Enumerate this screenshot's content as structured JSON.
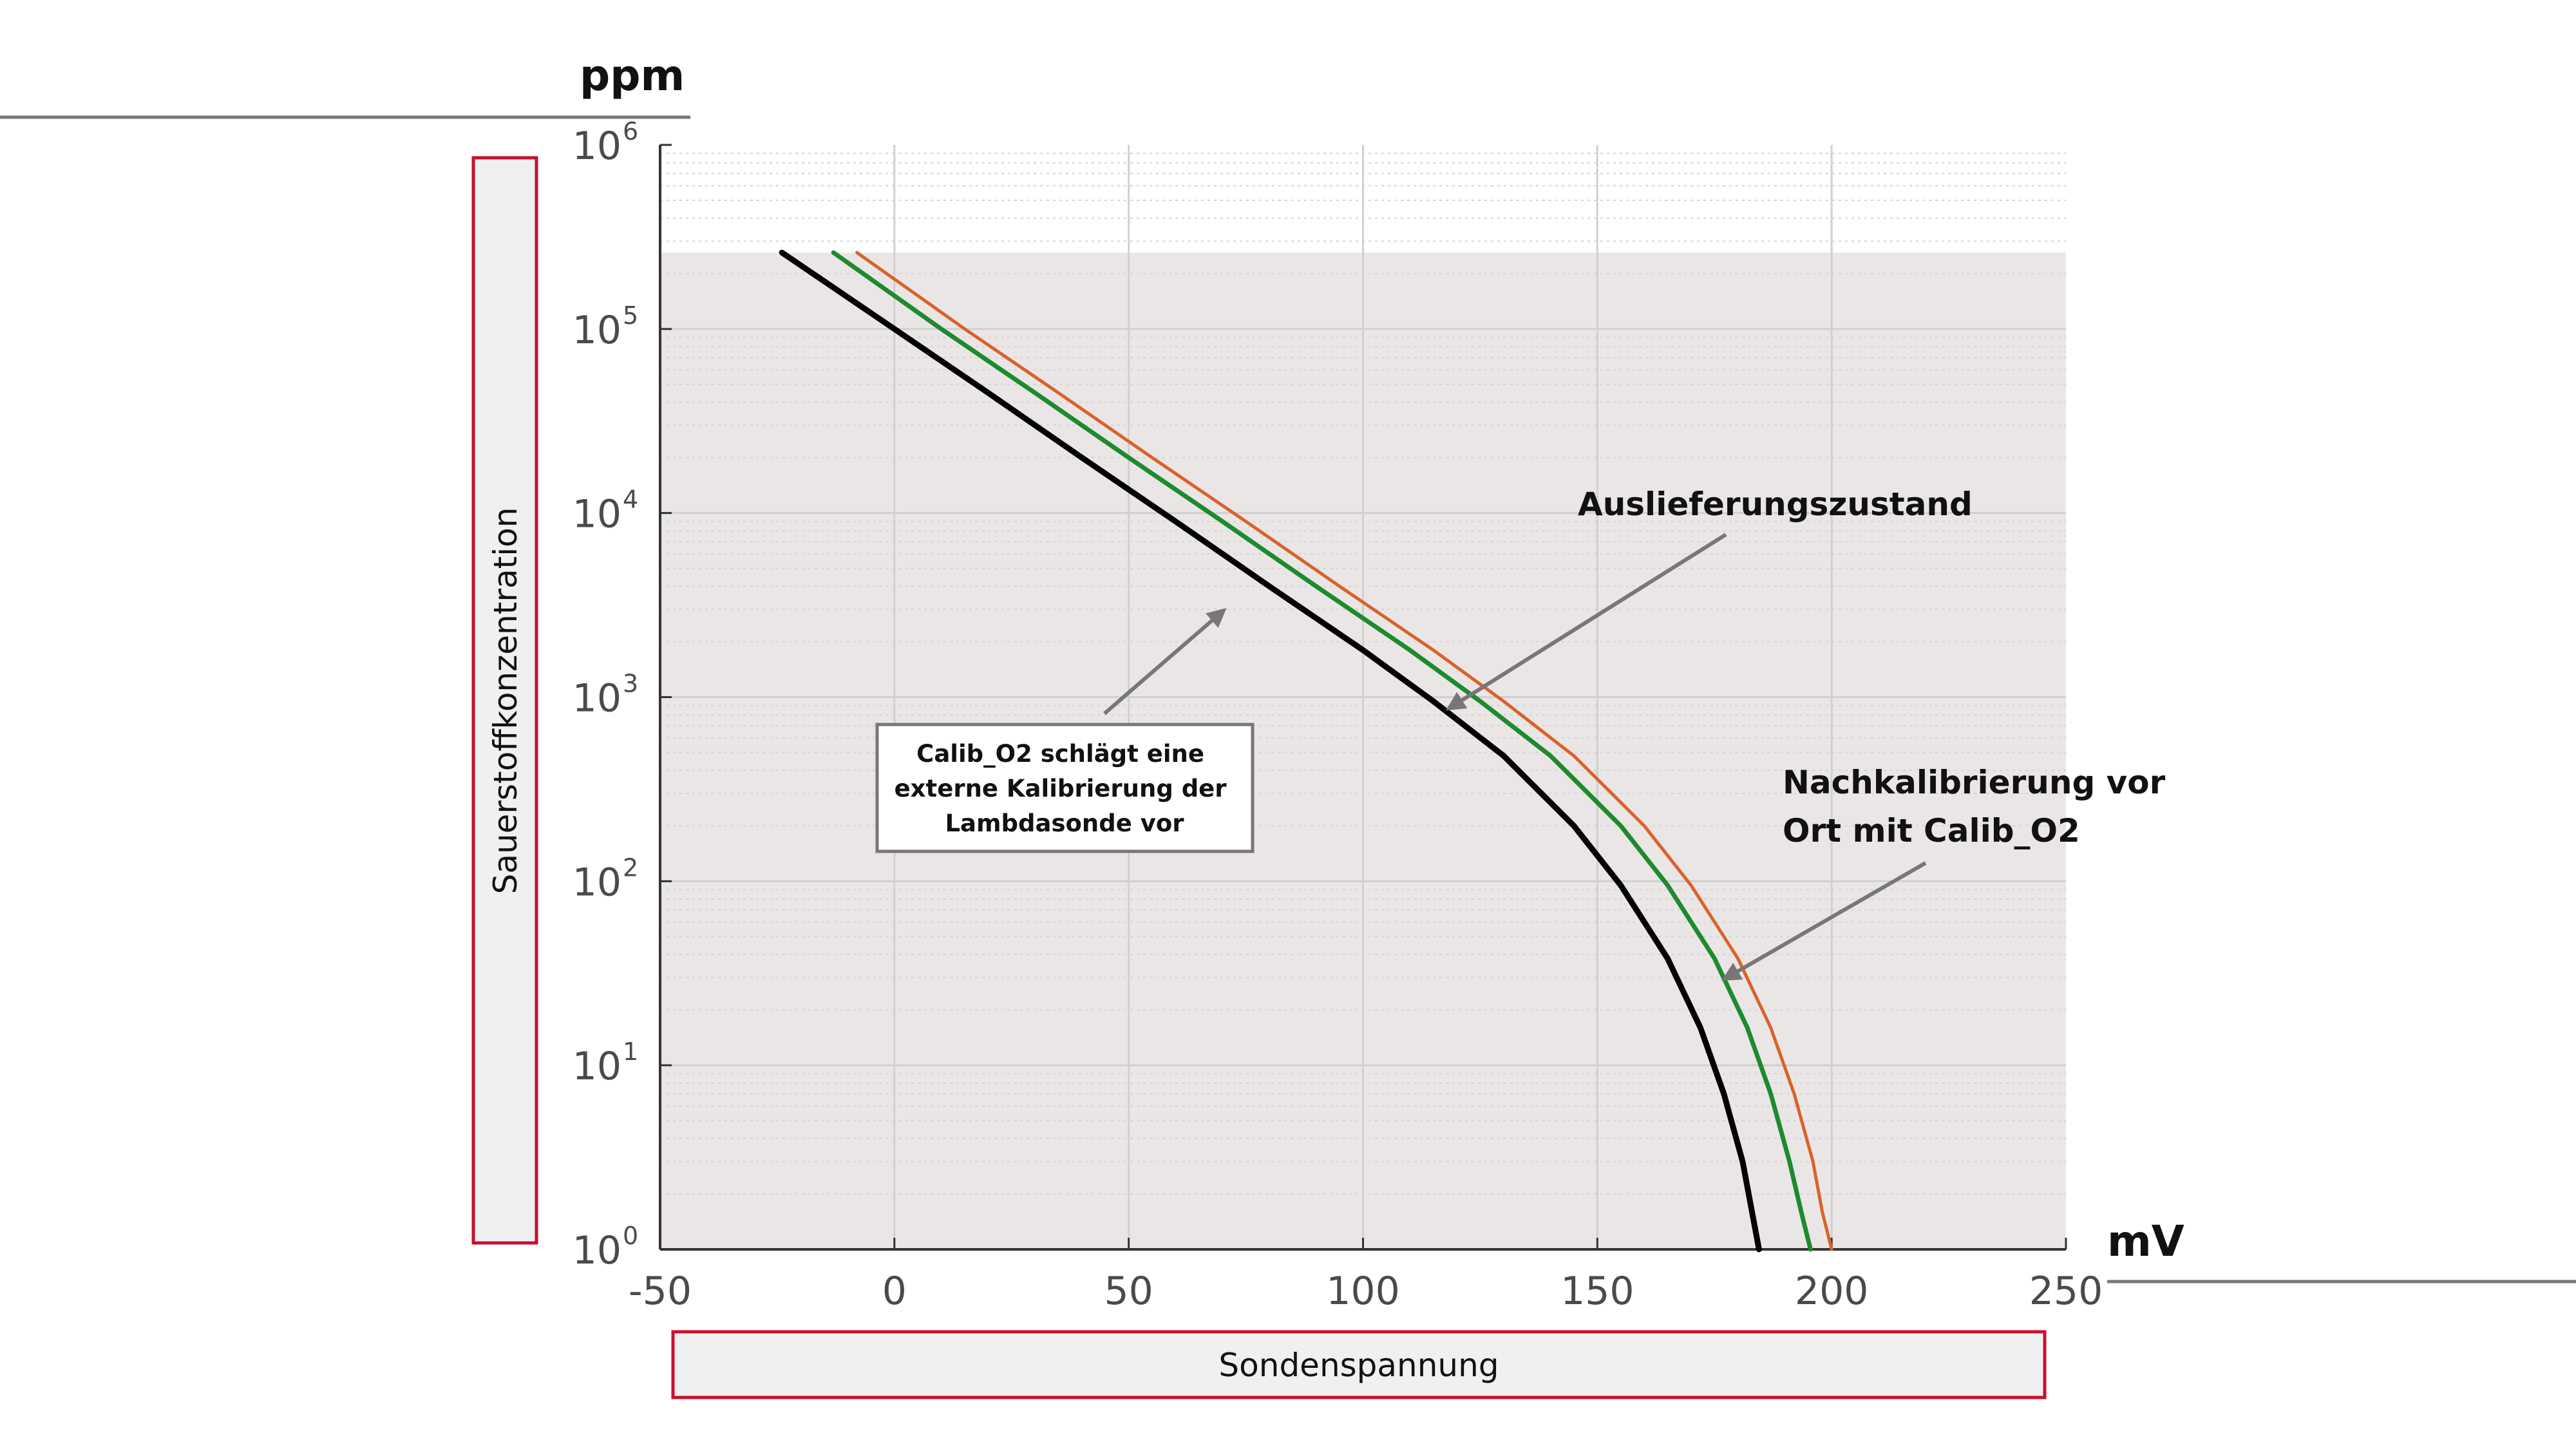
{
  "chart_data": {
    "type": "line",
    "y_unit": "ppm",
    "x_unit": "mV",
    "xlabel": "Sondenspannung",
    "ylabel": "Sauerstoffkonzentration",
    "xlim": [
      -50,
      250
    ],
    "ylim": [
      1,
      1000000
    ],
    "yscale": "log",
    "grid": true,
    "x_ticks": [
      "-50",
      "0",
      "50",
      "100",
      "150",
      "200",
      "250"
    ],
    "y_ticks": [
      {
        "base": "10",
        "exp": "0"
      },
      {
        "base": "10",
        "exp": "1"
      },
      {
        "base": "10",
        "exp": "2"
      },
      {
        "base": "10",
        "exp": "3"
      },
      {
        "base": "10",
        "exp": "4"
      },
      {
        "base": "10",
        "exp": "5"
      },
      {
        "base": "10",
        "exp": "6"
      }
    ],
    "shaded_region": {
      "x": [
        -50,
        250
      ],
      "y_max": 260000,
      "color": "#eae6e6"
    },
    "series": [
      {
        "color": "#000000",
        "x": [
          -24,
          0,
          20,
          40,
          60,
          80,
          100,
          115,
          130,
          145,
          155,
          165,
          172,
          177,
          181,
          183,
          184.5
        ],
        "y": [
          260000,
          100000,
          45000,
          20000,
          9000,
          4000,
          1800,
          950,
          480,
          200,
          95,
          38,
          16,
          7,
          3,
          1.6,
          1
        ]
      },
      {
        "color": "#1e8a2e",
        "x": [
          -13,
          10,
          30,
          50,
          70,
          90,
          110,
          125,
          140,
          155,
          165,
          175,
          182,
          187,
          191,
          193.5,
          195.5
        ],
        "y": [
          260000,
          100000,
          45000,
          20000,
          9000,
          4000,
          1800,
          950,
          480,
          200,
          95,
          38,
          16,
          7,
          3,
          1.6,
          1
        ]
      },
      {
        "color": "#d9622b",
        "x": [
          -8,
          15,
          35,
          55,
          75,
          95,
          115,
          130,
          145,
          160,
          170,
          180,
          187,
          192,
          196,
          198,
          200
        ],
        "y": [
          260000,
          100000,
          45000,
          20000,
          9000,
          4000,
          1800,
          950,
          480,
          200,
          95,
          38,
          16,
          7,
          3,
          1.6,
          1
        ]
      }
    ],
    "annotations": [
      {
        "id": "auslieferung",
        "lines": [
          "Auslieferungszustand"
        ],
        "arrow_to": {
          "x": 118,
          "y": 1000
        }
      },
      {
        "id": "nachkalibrierung",
        "lines": [
          "Nachkalibrierung vor",
          "Ort mit Calib_O2"
        ],
        "arrow_to": {
          "x": 176,
          "y": 32
        }
      },
      {
        "id": "calib-box",
        "lines": [
          "Calib_O2 schlägt eine",
          "externe Kalibrierung der",
          "Lambdasonde vor"
        ],
        "arrow_to": {
          "x": 71,
          "y": 3000
        }
      }
    ]
  }
}
